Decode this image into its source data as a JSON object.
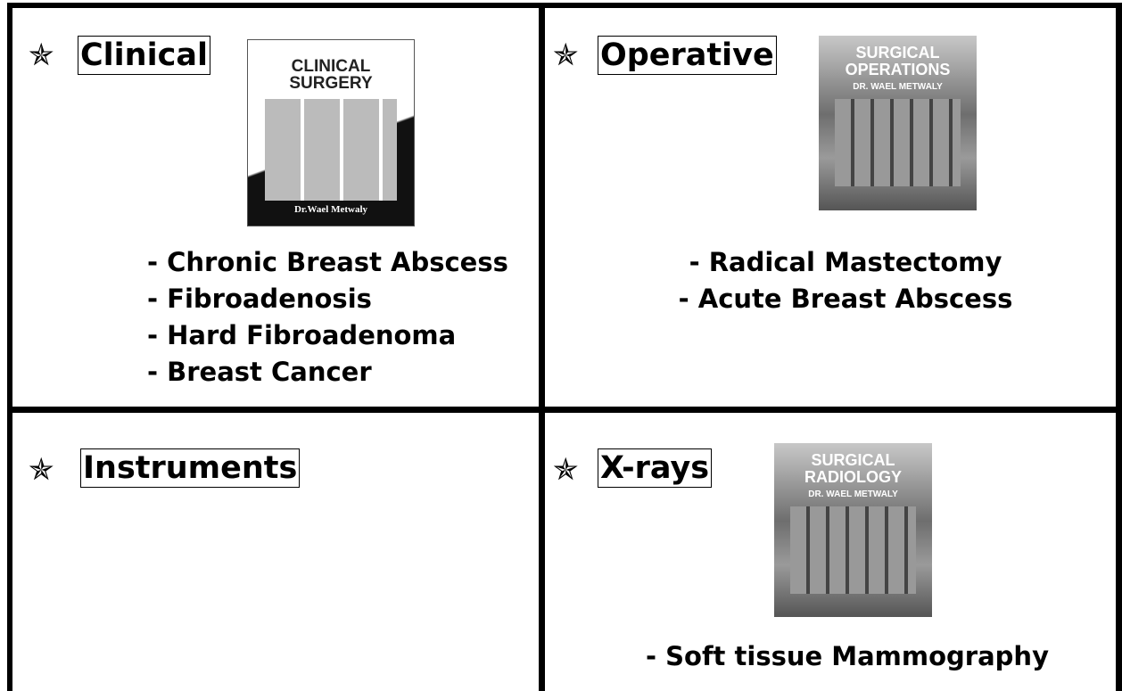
{
  "quadrants": [
    {
      "heading": "Clinical",
      "cover": {
        "title": "CLINICAL SURGERY",
        "author": "Dr.Wael Metwaly"
      },
      "items": [
        "- Chronic Breast Abscess",
        "- Fibroadenosis",
        "- Hard Fibroadenoma",
        "- Breast Cancer"
      ]
    },
    {
      "heading": "Operative",
      "cover": {
        "title": "SURGICAL OPERATIONS",
        "author": "DR. WAEL METWALY"
      },
      "items": [
        "- Radical Mastectomy",
        "- Acute Breast Abscess"
      ]
    },
    {
      "heading": "Instruments",
      "items": []
    },
    {
      "heading": "X-rays",
      "cover": {
        "title": "SURGICAL RADIOLOGY",
        "author": "DR. WAEL METWALY"
      },
      "items": [
        "- Soft tissue Mammography"
      ]
    }
  ]
}
